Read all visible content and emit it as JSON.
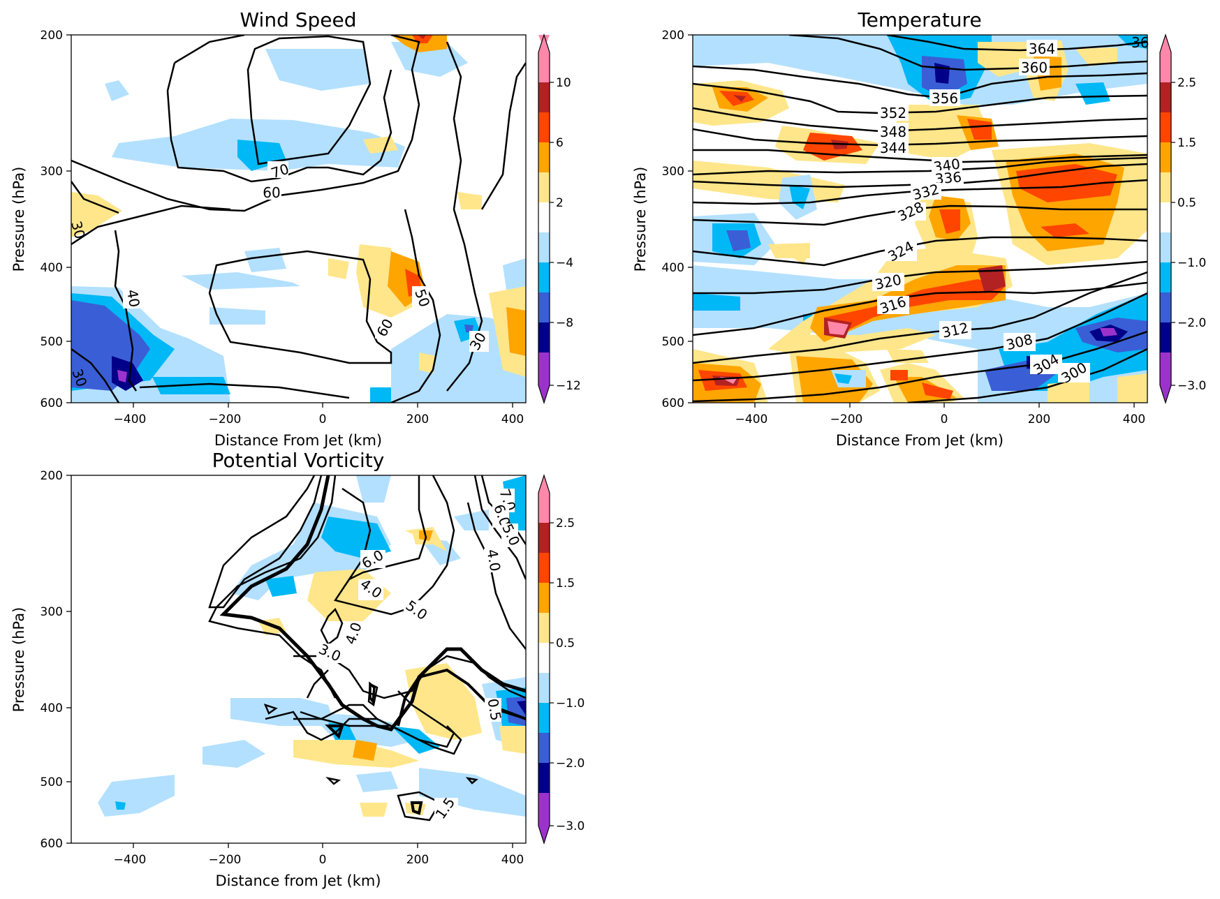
{
  "chart_data": [
    {
      "type": "heatmap",
      "title": "Wind Speed",
      "xlabel": "Distance From Jet (km)",
      "ylabel": "Pressure (hPa)",
      "xlim": [
        -530,
        430
      ],
      "ylim": [
        600,
        200
      ],
      "y_scale": "log",
      "x_ticks": [
        "−400",
        "−200",
        "0",
        "200",
        "400"
      ],
      "y_ticks": [
        "200",
        "300",
        "400",
        "500",
        "600"
      ],
      "colorbar_ticks": [
        "−12",
        "−8",
        "−4",
        "2",
        "6",
        "10"
      ],
      "colorbar_levels": [
        -14,
        -12,
        -10,
        -8,
        -6,
        -4,
        -2,
        2,
        4,
        6,
        8,
        10,
        12
      ],
      "contour_labels": [
        "70",
        "60",
        "30",
        "40",
        "50",
        "60",
        "30",
        "30"
      ],
      "colors": [
        "#9c32cc",
        "#000088",
        "#3a5ed6",
        "#00b8f5",
        "#b3e0ff",
        "#ffffff",
        "#ffe68a",
        "#ffa500",
        "#ff4500",
        "#b22222",
        "#ff88aa"
      ],
      "grid": false
    },
    {
      "type": "heatmap",
      "title": "Temperature",
      "xlabel": "Distance From Jet (km)",
      "ylabel": "Pressure (hPa)",
      "xlim": [
        -530,
        430
      ],
      "ylim": [
        600,
        200
      ],
      "y_scale": "log",
      "x_ticks": [
        "−400",
        "−200",
        "0",
        "200",
        "400"
      ],
      "y_ticks": [
        "200",
        "300",
        "400",
        "500",
        "600"
      ],
      "colorbar_ticks": [
        "−3.0",
        "−2.0",
        "−1.0",
        "0.5",
        "1.5",
        "2.5"
      ],
      "contour_labels": [
        "364",
        "360",
        "356",
        "352",
        "348",
        "344",
        "340",
        "336",
        "332",
        "328",
        "324",
        "320",
        "316",
        "312",
        "308",
        "304",
        "300",
        "36"
      ],
      "grid": false
    },
    {
      "type": "heatmap",
      "title": "Potential Vorticity",
      "xlabel": "Distance from Jet (km)",
      "ylabel": "Pressure (hPa)",
      "xlim": [
        -530,
        430
      ],
      "ylim": [
        600,
        200
      ],
      "y_scale": "log",
      "x_ticks": [
        "−400",
        "−200",
        "0",
        "200",
        "400"
      ],
      "y_ticks": [
        "200",
        "300",
        "400",
        "500",
        "600"
      ],
      "colorbar_ticks": [
        "−3.0",
        "−2.0",
        "−1.0",
        "0.5",
        "1.5",
        "2.5"
      ],
      "contour_labels": [
        "7.0",
        "6.0",
        "5.0",
        "6.0",
        "4.0",
        "4.0",
        "5.0",
        "4.0",
        "3.0",
        "0.5",
        "1.5"
      ],
      "grid": false
    }
  ]
}
